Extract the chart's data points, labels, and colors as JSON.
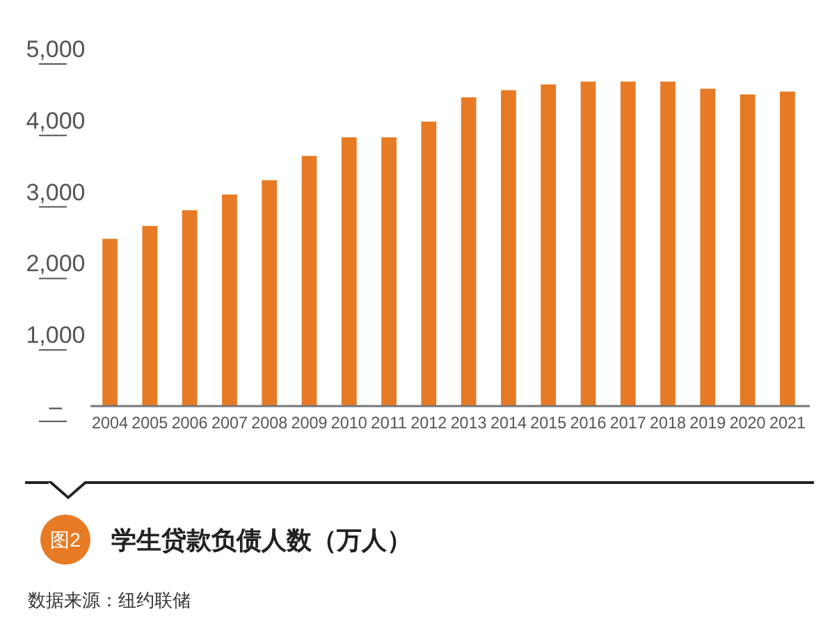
{
  "chart_data": {
    "type": "bar",
    "title": "学生贷款负债人数（万人）",
    "subtitle": "图2",
    "annotations": [
      "数据来源：纽约联储"
    ],
    "categories": [
      "2004",
      "2005",
      "2006",
      "2007",
      "2008",
      "2009",
      "2010",
      "2011",
      "2012",
      "2013",
      "2014",
      "2015",
      "2016",
      "2017",
      "2018",
      "2019",
      "2020",
      "2021"
    ],
    "values": [
      2340,
      2520,
      2740,
      2960,
      3160,
      3500,
      3760,
      3760,
      3980,
      4320,
      4420,
      4500,
      4540,
      4540,
      4540,
      4440,
      4360,
      4400
    ],
    "color": "#e77b25",
    "ylim": [
      0,
      5000
    ],
    "yticks": [
      {
        "value": 0,
        "label": "–"
      },
      {
        "value": 1000,
        "label": "1,000"
      },
      {
        "value": 2000,
        "label": "2,000"
      },
      {
        "value": 3000,
        "label": "3,000"
      },
      {
        "value": 4000,
        "label": "4,000"
      },
      {
        "value": 5000,
        "label": "5,000"
      }
    ],
    "grid": false
  }
}
